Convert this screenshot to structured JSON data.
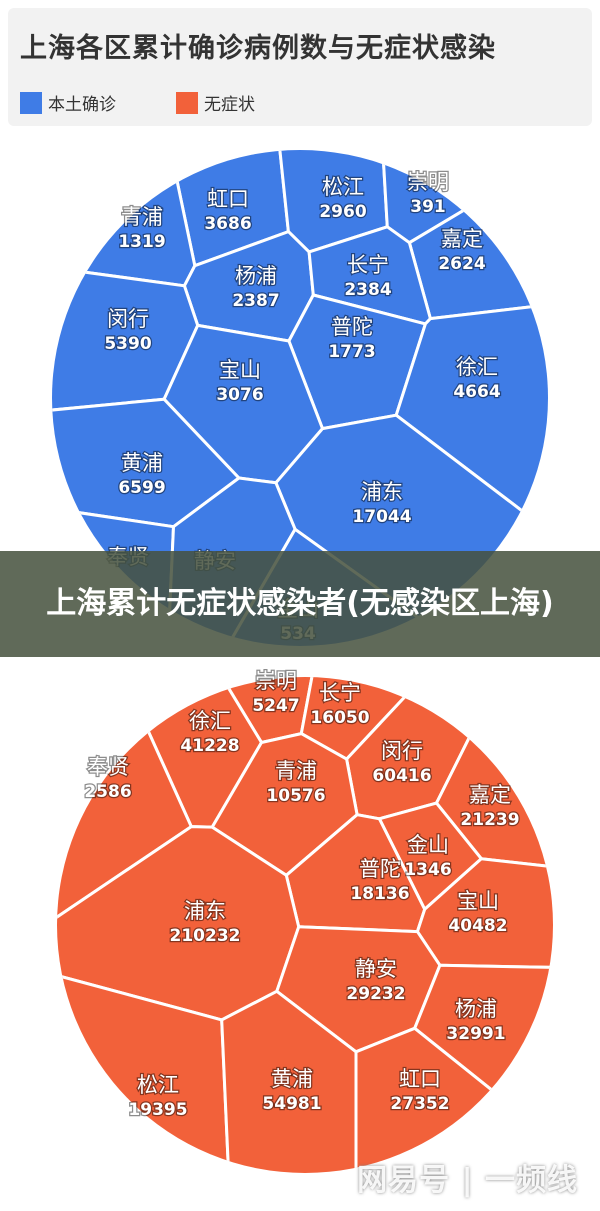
{
  "header": {
    "title": "上海各区累计确诊病例数与无症状感染",
    "legend": [
      {
        "label": "本土确诊",
        "color": "#3f7ce6"
      },
      {
        "label": "无症状",
        "color": "#f2613a"
      }
    ]
  },
  "banner": {
    "text": "上海累计无症状感染者(无感染区上海)"
  },
  "watermark": {
    "text": "网易号 | 一频线"
  },
  "chart_data": [
    {
      "type": "voronoi-treemap",
      "series": "本土确诊",
      "color": "#3f7ce6",
      "cells": [
        {
          "label": "虹口",
          "value": 3686
        },
        {
          "label": "松江",
          "value": 2960
        },
        {
          "label": "崇明",
          "value": 391
        },
        {
          "label": "青浦",
          "value": 1319
        },
        {
          "label": "嘉定",
          "value": 2624
        },
        {
          "label": "杨浦",
          "value": 2387
        },
        {
          "label": "长宁",
          "value": 2384
        },
        {
          "label": "闵行",
          "value": 5390
        },
        {
          "label": "普陀",
          "value": 1773
        },
        {
          "label": "宝山",
          "value": 3076
        },
        {
          "label": "徐汇",
          "value": 4664
        },
        {
          "label": "黄浦",
          "value": 6599
        },
        {
          "label": "浦东",
          "value": 17044
        },
        {
          "label": "奉贤",
          "value": null
        },
        {
          "label": "静安",
          "value": null
        },
        {
          "label": "金山",
          "value": 534
        }
      ]
    },
    {
      "type": "voronoi-treemap",
      "series": "无症状",
      "color": "#f2613a",
      "cells": [
        {
          "label": "崇明",
          "value": 5247
        },
        {
          "label": "长宁",
          "value": 16050
        },
        {
          "label": "徐汇",
          "value": 41228
        },
        {
          "label": "闵行",
          "value": 60416
        },
        {
          "label": "奉贤",
          "value": 2586
        },
        {
          "label": "青浦",
          "value": 10576
        },
        {
          "label": "嘉定",
          "value": 21239
        },
        {
          "label": "金山",
          "value": 1346
        },
        {
          "label": "普陀",
          "value": 18136
        },
        {
          "label": "浦东",
          "value": 210232
        },
        {
          "label": "宝山",
          "value": 40482
        },
        {
          "label": "静安",
          "value": 29232
        },
        {
          "label": "杨浦",
          "value": 32991
        },
        {
          "label": "松江",
          "value": 19395
        },
        {
          "label": "黄浦",
          "value": 54981
        },
        {
          "label": "虹口",
          "value": 27352
        }
      ]
    }
  ]
}
